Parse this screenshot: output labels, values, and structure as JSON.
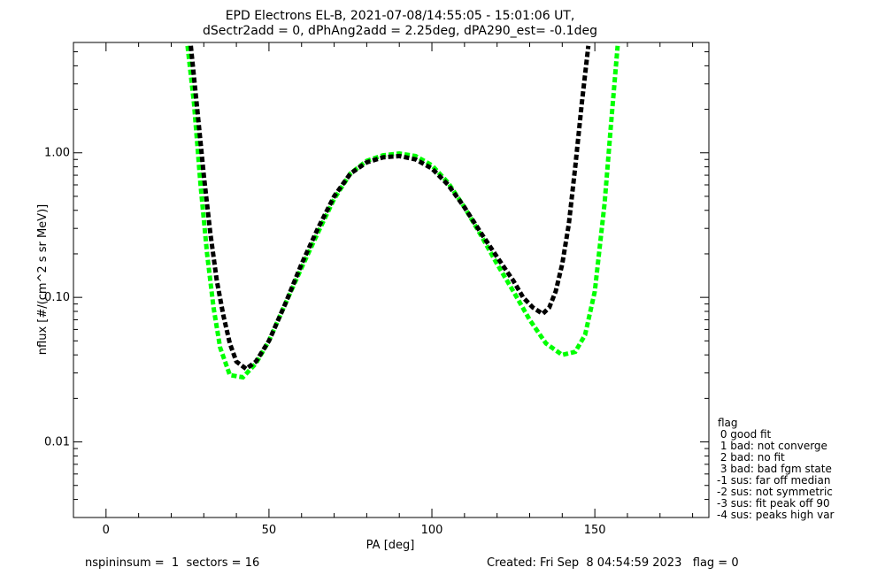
{
  "chart_data": {
    "type": "line",
    "title_line1": "EPD Electrons EL-B, 2021-07-08/14:55:05 - 15:01:06 UT,",
    "title_line2": "dSectr2add = 0, dPhAng2add = 2.25deg, dPA290_est=  -0.1deg",
    "xlabel": "PA [deg]",
    "ylabel": "nflux [#/(cm^2 s sr MeV)]",
    "xlim": [
      -10,
      185
    ],
    "ylim": [
      0.003,
      5.8
    ],
    "y_scale": "log",
    "grid": false,
    "x_ticks": [
      0,
      50,
      100,
      150
    ],
    "x_tick_labels": [
      "0",
      "50",
      "100",
      "150"
    ],
    "y_ticks": [
      0.01,
      0.1,
      1.0
    ],
    "y_tick_labels": [
      "0.01",
      "0.10",
      "1.00"
    ],
    "colors": {
      "series_a": "#ff0000",
      "series_b": "#0000ff",
      "fit_green": "#00ff00",
      "fit_black": "#000000"
    },
    "series": [
      {
        "color": "#00ff00",
        "style": "dashed-thick",
        "x": [
          25,
          27,
          29,
          31,
          33,
          35,
          38,
          42,
          46,
          50,
          55,
          60,
          65,
          70,
          75,
          80,
          85,
          90,
          95,
          100,
          105,
          110,
          115,
          120,
          125,
          130,
          135,
          140,
          144,
          147,
          150,
          153,
          155,
          157
        ],
        "y": [
          5.5,
          2.2,
          0.6,
          0.2,
          0.085,
          0.045,
          0.029,
          0.028,
          0.035,
          0.05,
          0.09,
          0.16,
          0.28,
          0.48,
          0.72,
          0.88,
          0.96,
          0.99,
          0.95,
          0.82,
          0.62,
          0.42,
          0.27,
          0.17,
          0.11,
          0.07,
          0.048,
          0.04,
          0.042,
          0.055,
          0.11,
          0.45,
          1.6,
          5.5
        ]
      },
      {
        "color": "#000000",
        "style": "dashed-thick",
        "x": [
          26,
          28,
          30,
          32,
          34,
          36,
          38,
          40,
          43,
          46,
          50,
          55,
          60,
          65,
          70,
          75,
          80,
          85,
          90,
          95,
          100,
          105,
          110,
          115,
          120,
          125,
          128,
          131,
          134,
          136,
          138,
          140,
          142,
          144,
          146,
          148
        ],
        "y": [
          5.5,
          2.0,
          0.7,
          0.28,
          0.13,
          0.075,
          0.048,
          0.036,
          0.032,
          0.036,
          0.05,
          0.09,
          0.17,
          0.3,
          0.5,
          0.72,
          0.86,
          0.93,
          0.95,
          0.9,
          0.78,
          0.6,
          0.42,
          0.28,
          0.19,
          0.13,
          0.1,
          0.085,
          0.077,
          0.085,
          0.11,
          0.17,
          0.32,
          0.8,
          2.2,
          5.5
        ]
      }
    ]
  },
  "legend": {
    "title": "flag",
    "items": [
      " 0 good fit",
      " 1 bad: not converge",
      " 2 bad: no fit",
      " 3 bad: bad fgm state",
      "-1 sus: far off median",
      "-2 sus: not symmetric",
      "-3 sus: fit peak off 90",
      "-4 sus: peaks high var"
    ]
  },
  "footer": {
    "left": "nspininsum =  1  sectors = 16",
    "right": "Created: Fri Sep  8 04:54:59 2023   flag = 0"
  }
}
